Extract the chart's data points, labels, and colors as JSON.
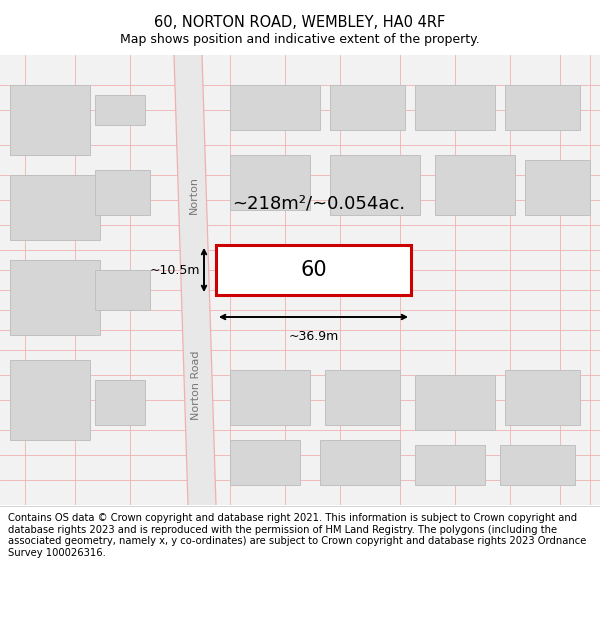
{
  "title": "60, NORTON ROAD, WEMBLEY, HA0 4RF",
  "subtitle": "Map shows position and indicative extent of the property.",
  "footer": "Contains OS data © Crown copyright and database right 2021. This information is subject to Crown copyright and database rights 2023 and is reproduced with the permission of HM Land Registry. The polygons (including the associated geometry, namely x, y co-ordinates) are subject to Crown copyright and database rights 2023 Ordnance Survey 100026316.",
  "map_bg": "#f2f2f2",
  "building_color": "#d6d6d6",
  "building_edge": "#c0c0c0",
  "road_fill": "#e8e8e8",
  "road_edge": "#f0b0b0",
  "grid_line_color": "#f0b0b0",
  "subject_fill": "#ffffff",
  "subject_edge": "#cc0000",
  "subject_label": "60",
  "area_label": "~218m²/~0.054ac.",
  "width_label": "~36.9m",
  "height_label": "~10.5m",
  "road_name_upper": "Norton",
  "road_name_lower": "Norton Road",
  "title_fontsize": 10.5,
  "subtitle_fontsize": 9,
  "footer_fontsize": 7.2
}
